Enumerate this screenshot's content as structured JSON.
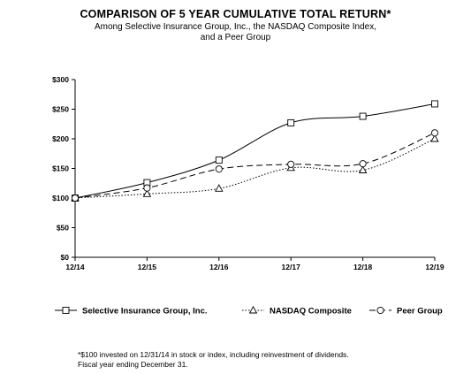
{
  "chart_data": {
    "type": "line",
    "title": "COMPARISON OF 5 YEAR CUMULATIVE TOTAL RETURN*",
    "subtitle": [
      "Among Selective Insurance Group, Inc., the NASDAQ  Composite Index,",
      "and a Peer Group"
    ],
    "categories": [
      "12/14",
      "12/15",
      "12/16",
      "12/17",
      "12/18",
      "12/19"
    ],
    "y_tick_labels": [
      "$0",
      "$50",
      "$100",
      "$150",
      "$200",
      "$250",
      "$300"
    ],
    "y_ticks": [
      0,
      50,
      100,
      150,
      200,
      250,
      300
    ],
    "ylim": [
      0,
      300
    ],
    "grid": false,
    "legend_position": "bottom",
    "series": [
      {
        "name": "Selective Insurance Group, Inc.",
        "marker": "square",
        "dash": "solid",
        "values": [
          100,
          126,
          164,
          227,
          238,
          259
        ]
      },
      {
        "name": "NASDAQ Composite",
        "marker": "triangle",
        "dash": "dotted",
        "values": [
          100,
          107,
          116,
          151,
          147,
          200
        ]
      },
      {
        "name": "Peer Group",
        "marker": "circle",
        "dash": "dashed",
        "values": [
          100,
          117,
          149,
          157,
          158,
          210
        ]
      }
    ]
  },
  "footnote": [
    "*$100 invested on 12/31/14 in stock or index, including reinvestment of dividends.",
    "Fiscal year ending December 31."
  ]
}
